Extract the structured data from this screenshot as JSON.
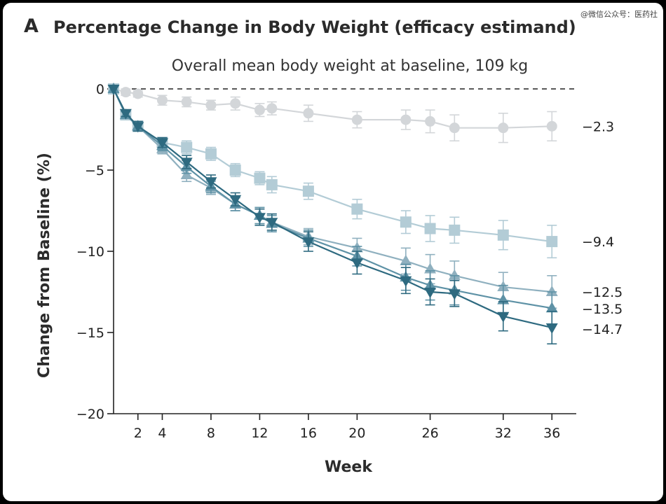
{
  "header": {
    "panel_letter": "A",
    "title": "Percentage Change in Body Weight (efficacy estimand)",
    "watermark": "@微信公众号：医药社"
  },
  "chart_data": {
    "type": "line",
    "title": "Percentage Change in Body Weight (efficacy estimand)",
    "subtitle": "Overall mean body weight at baseline, 109 kg",
    "xlabel": "Week",
    "ylabel": "Change from Baseline (%)",
    "xlim": [
      0,
      38
    ],
    "ylim": [
      -20,
      0
    ],
    "xticks": [
      2,
      4,
      8,
      12,
      16,
      20,
      26,
      32,
      36
    ],
    "yticks": [
      0,
      -5,
      -10,
      -15,
      -20
    ],
    "reference_line": 0,
    "series": [
      {
        "color": "#d3d6d9",
        "marker": "circle",
        "x": [
          0,
          1,
          2,
          4,
          6,
          8,
          10,
          12,
          13,
          16,
          20,
          24,
          26,
          28,
          32,
          36
        ],
        "y": [
          0,
          -0.2,
          -0.3,
          -0.7,
          -0.8,
          -1.0,
          -0.9,
          -1.3,
          -1.2,
          -1.5,
          -1.9,
          -1.9,
          -2.0,
          -2.4,
          -2.4,
          -2.3
        ],
        "err": [
          0,
          0.2,
          0.2,
          0.3,
          0.3,
          0.3,
          0.4,
          0.4,
          0.4,
          0.5,
          0.5,
          0.6,
          0.7,
          0.8,
          0.9,
          0.9
        ],
        "end_label": "−2.3"
      },
      {
        "color": "#b3ccd6",
        "marker": "square",
        "x": [
          0,
          1,
          2,
          4,
          6,
          8,
          10,
          12,
          13,
          16,
          20,
          24,
          26,
          28,
          32,
          36
        ],
        "y": [
          0,
          -1.6,
          -2.3,
          -3.3,
          -3.6,
          -4.0,
          -5.0,
          -5.5,
          -5.9,
          -6.3,
          -7.4,
          -8.2,
          -8.6,
          -8.7,
          -9.0,
          -9.4
        ],
        "err": [
          0,
          0.2,
          0.3,
          0.3,
          0.4,
          0.4,
          0.4,
          0.4,
          0.5,
          0.5,
          0.6,
          0.7,
          0.8,
          0.8,
          0.9,
          1.0
        ],
        "end_label": "−9.4"
      },
      {
        "color": "#8fb0bf",
        "marker": "triangle-up",
        "x": [
          0,
          1,
          2,
          4,
          6,
          8,
          10,
          12,
          13,
          16,
          20,
          24,
          26,
          28,
          32,
          36
        ],
        "y": [
          0,
          -1.6,
          -2.3,
          -3.7,
          -5.3,
          -6.1,
          -7.1,
          -7.8,
          -8.2,
          -9.1,
          -9.8,
          -10.6,
          -11.1,
          -11.5,
          -12.2,
          -12.5
        ],
        "err": [
          0,
          0.2,
          0.3,
          0.3,
          0.4,
          0.4,
          0.4,
          0.5,
          0.5,
          0.5,
          0.6,
          0.8,
          0.9,
          0.9,
          0.9,
          1.0
        ],
        "end_label": "−12.5"
      },
      {
        "color": "#5e92a6",
        "marker": "triangle-up",
        "x": [
          0,
          1,
          2,
          4,
          6,
          8,
          10,
          12,
          13,
          16,
          20,
          24,
          26,
          28,
          32,
          36
        ],
        "y": [
          0,
          -1.6,
          -2.3,
          -3.5,
          -4.8,
          -6.0,
          -7.1,
          -7.8,
          -8.3,
          -9.2,
          -10.3,
          -11.6,
          -12.1,
          -12.4,
          -13.0,
          -13.5
        ],
        "err": [
          0,
          0.2,
          0.3,
          0.3,
          0.4,
          0.4,
          0.4,
          0.5,
          0.5,
          0.5,
          0.6,
          0.8,
          0.9,
          0.9,
          0.9,
          1.0
        ],
        "end_label": "−13.5"
      },
      {
        "color": "#2e6a80",
        "marker": "triangle-down",
        "x": [
          0,
          1,
          2,
          4,
          6,
          8,
          10,
          12,
          13,
          16,
          20,
          24,
          26,
          28,
          32,
          36
        ],
        "y": [
          0,
          -1.5,
          -2.3,
          -3.3,
          -4.5,
          -5.7,
          -6.8,
          -7.9,
          -8.2,
          -9.4,
          -10.7,
          -11.8,
          -12.5,
          -12.6,
          -14.0,
          -14.7
        ],
        "err": [
          0,
          0.2,
          0.3,
          0.3,
          0.4,
          0.4,
          0.4,
          0.5,
          0.5,
          0.6,
          0.7,
          0.8,
          0.8,
          0.8,
          0.9,
          1.0
        ],
        "end_label": "−14.7"
      }
    ]
  }
}
